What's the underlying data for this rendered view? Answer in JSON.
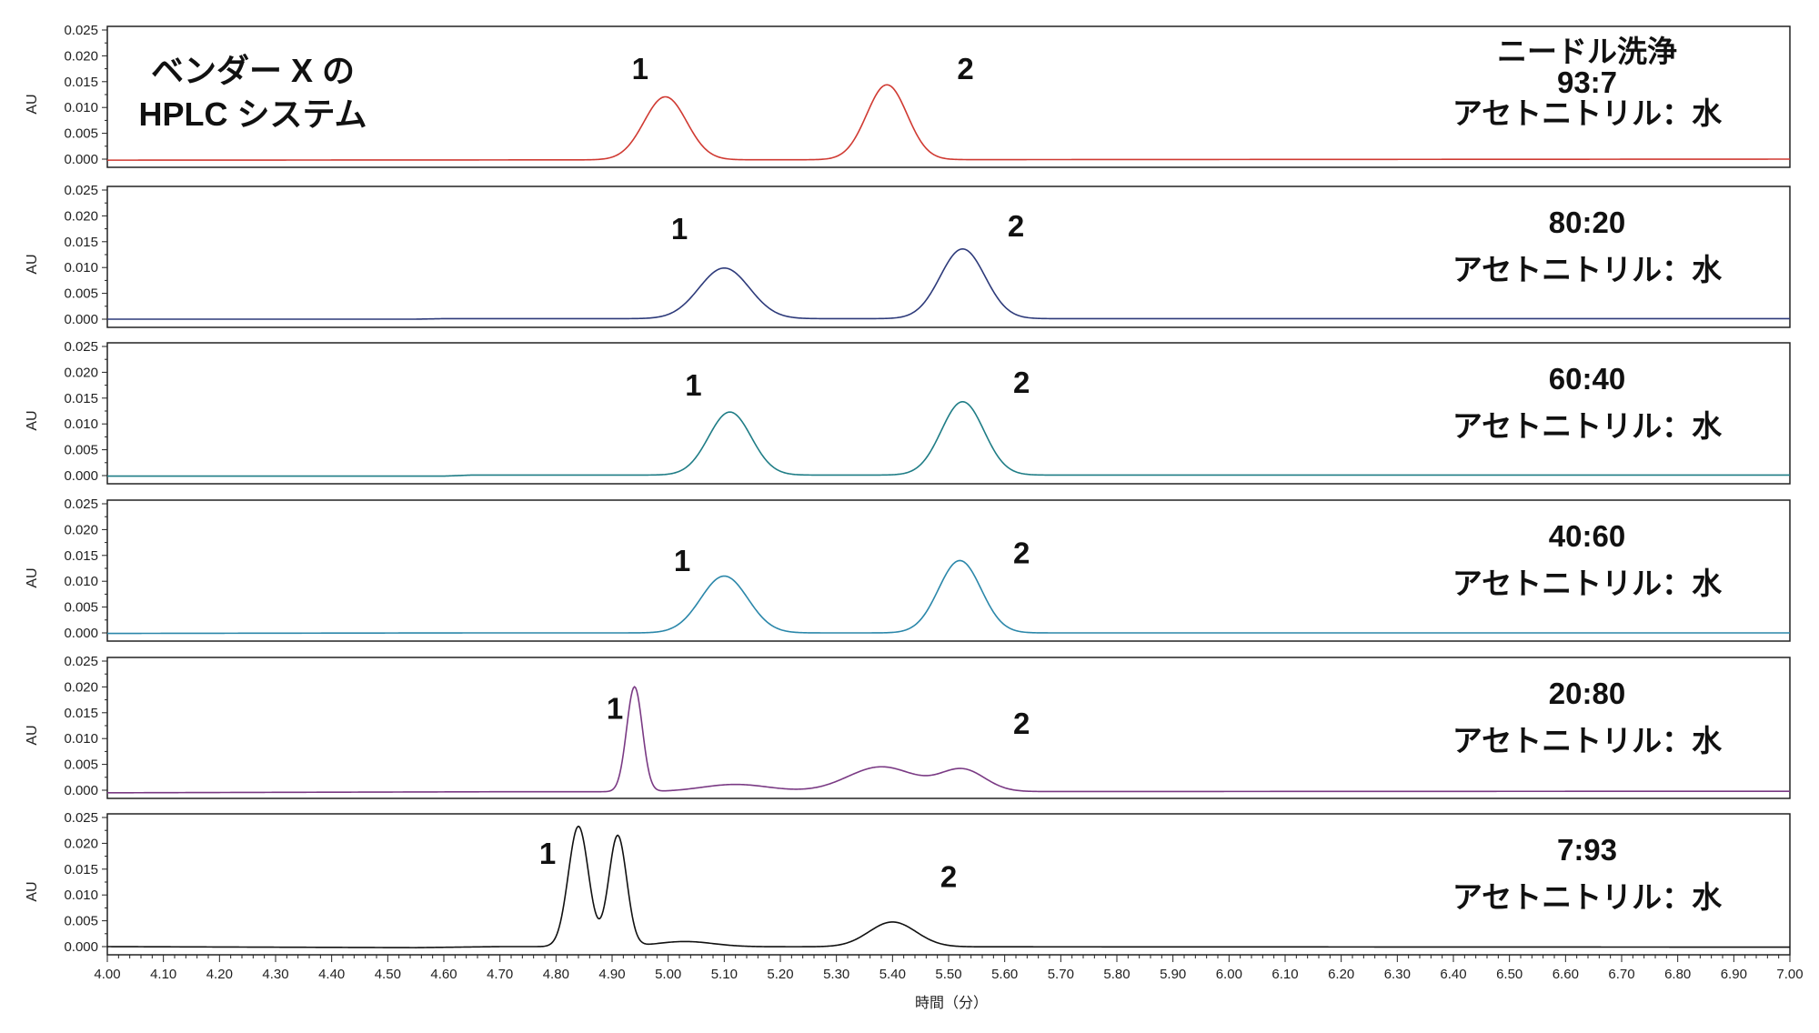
{
  "chart_data": {
    "type": "line",
    "title": "",
    "vendor_label": [
      "ベンダー X の",
      "HPLC システム"
    ],
    "xlabel": "時間（分）",
    "ylabel": "AU",
    "xlim": [
      4.0,
      7.0
    ],
    "ylim": [
      -0.001,
      0.025
    ],
    "x_tick_step": 0.1,
    "x_ticks": [
      "4.00",
      "4.10",
      "4.20",
      "4.30",
      "4.40",
      "4.50",
      "4.60",
      "4.70",
      "4.80",
      "4.90",
      "5.00",
      "5.10",
      "5.20",
      "5.30",
      "5.40",
      "5.50",
      "5.60",
      "5.70",
      "5.80",
      "5.90",
      "6.00",
      "6.10",
      "6.20",
      "6.30",
      "6.40",
      "6.50",
      "6.60",
      "6.70",
      "6.80",
      "6.90",
      "7.00"
    ],
    "y_ticks": [
      "0.000",
      "0.005",
      "0.010",
      "0.015",
      "0.020",
      "0.025"
    ],
    "grid": false,
    "panels": [
      {
        "name": "ニードル洗浄 93:7",
        "color": "#d03a32",
        "annotation": [
          "ニードル洗浄",
          "93:7",
          "アセトニトリル：水"
        ],
        "peak_labels": [
          {
            "text": "1",
            "x": 4.95,
            "y": 0.0155
          },
          {
            "text": "2",
            "x": 5.53,
            "y": 0.0155
          }
        ],
        "baseline": [
          [
            4.0,
            -0.0002
          ],
          [
            7.0,
            0.0
          ]
        ],
        "peaks": [
          [
            4.995,
            0.0122,
            0.038
          ],
          [
            5.39,
            0.0145,
            0.036
          ]
        ]
      },
      {
        "name": "80:20",
        "color": "#2d3a7a",
        "annotation": [
          "80:20",
          "アセトニトリル：水"
        ],
        "peak_labels": [
          {
            "text": "1",
            "x": 5.02,
            "y": 0.0155
          },
          {
            "text": "2",
            "x": 5.62,
            "y": 0.016
          }
        ],
        "baseline": [
          [
            4.0,
            0.0
          ],
          [
            4.55,
            0.0
          ],
          [
            4.6,
            0.0001
          ],
          [
            7.0,
            0.0001
          ]
        ],
        "peaks": [
          [
            5.1,
            0.0098,
            0.045
          ],
          [
            5.525,
            0.0135,
            0.04
          ]
        ]
      },
      {
        "name": "60:40",
        "color": "#1f7d86",
        "annotation": [
          "60:40",
          "アセトニトリル：水"
        ],
        "peak_labels": [
          {
            "text": "1",
            "x": 5.045,
            "y": 0.0155
          },
          {
            "text": "2",
            "x": 5.63,
            "y": 0.016
          }
        ],
        "baseline": [
          [
            4.0,
            -0.0001
          ],
          [
            4.6,
            -0.0001
          ],
          [
            4.65,
            0.0001
          ],
          [
            7.0,
            0.0001
          ]
        ],
        "peaks": [
          [
            5.11,
            0.0122,
            0.038
          ],
          [
            5.525,
            0.0142,
            0.038
          ]
        ]
      },
      {
        "name": "40:60",
        "color": "#2b87aa",
        "annotation": [
          "40:60",
          "アセトニトリル：水"
        ],
        "peak_labels": [
          {
            "text": "1",
            "x": 5.025,
            "y": 0.012
          },
          {
            "text": "2",
            "x": 5.63,
            "y": 0.0135
          }
        ],
        "baseline": [
          [
            4.0,
            -0.0001
          ],
          [
            4.65,
            0.0
          ],
          [
            5.0,
            0.0
          ],
          [
            7.0,
            0.0
          ]
        ],
        "peaks": [
          [
            5.1,
            0.011,
            0.042
          ],
          [
            5.52,
            0.014,
            0.038
          ]
        ]
      },
      {
        "name": "20:80",
        "color": "#7a3a84",
        "annotation": [
          "20:80",
          "アセトニトリル：水"
        ],
        "peak_labels": [
          {
            "text": "1",
            "x": 4.905,
            "y": 0.0138
          },
          {
            "text": "2",
            "x": 5.63,
            "y": 0.0109
          }
        ],
        "baseline": [
          [
            4.0,
            -0.0005
          ],
          [
            4.7,
            -0.0003
          ],
          [
            7.0,
            -0.0002
          ]
        ],
        "peaks": [
          [
            4.94,
            0.0203,
            0.014
          ],
          [
            5.12,
            0.0014,
            0.06
          ],
          [
            5.38,
            0.0048,
            0.06
          ],
          [
            5.525,
            0.0042,
            0.04
          ]
        ]
      },
      {
        "name": "7:93",
        "color": "#111111",
        "annotation": [
          "7:93",
          "アセトニトリル：水"
        ],
        "peak_labels": [
          {
            "text": "1",
            "x": 4.785,
            "y": 0.016
          },
          {
            "text": "2",
            "x": 5.5,
            "y": 0.0115
          }
        ],
        "baseline": [
          [
            4.0,
            0.0
          ],
          [
            4.55,
            -0.0002
          ],
          [
            4.7,
            0.0
          ],
          [
            7.0,
            -0.0001
          ]
        ],
        "peaks": [
          [
            4.84,
            0.0233,
            0.018
          ],
          [
            4.91,
            0.0215,
            0.016
          ],
          [
            5.03,
            0.001,
            0.05
          ],
          [
            5.4,
            0.0048,
            0.042
          ]
        ]
      }
    ]
  }
}
